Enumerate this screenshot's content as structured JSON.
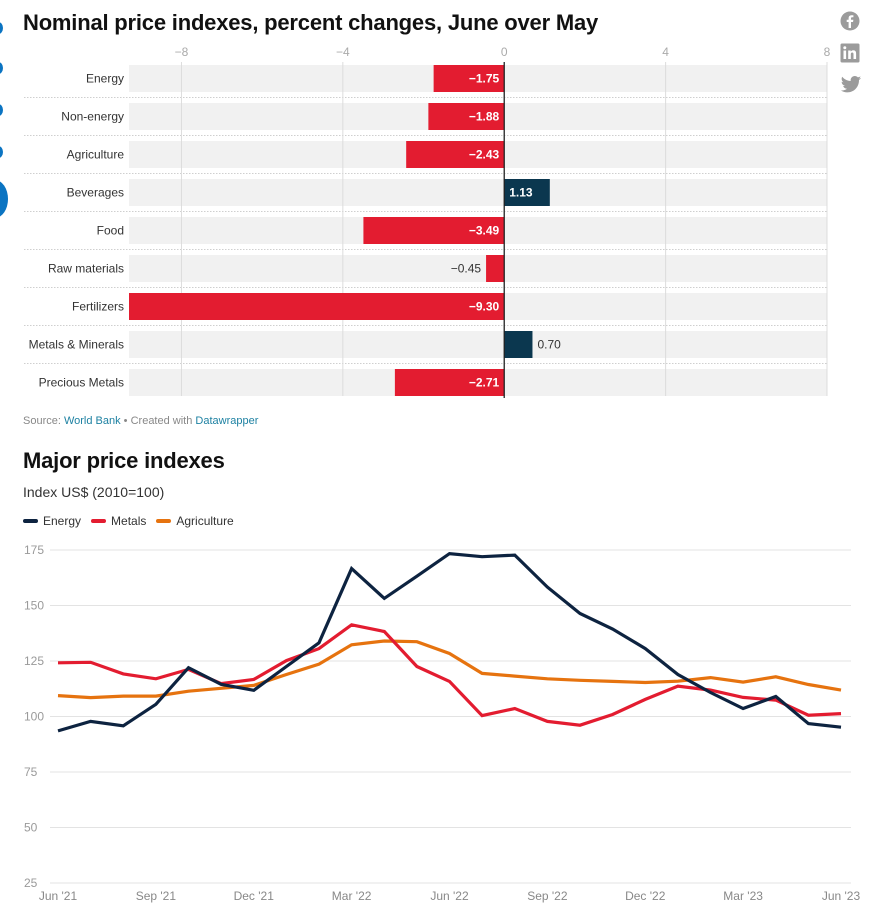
{
  "colors": {
    "negative": "#e31c30",
    "positive": "#0b374f",
    "energy": "#0d2340",
    "metals": "#e31c30",
    "agriculture": "#e6730f",
    "link": "#1d81a2",
    "edge_accent": "#0b74c2"
  },
  "social": [
    "facebook-icon",
    "linkedin-icon",
    "twitter-icon"
  ],
  "footer": {
    "source_prefix": "Source: ",
    "source_link": "World Bank",
    "separator": " • Created with ",
    "tool_link": "Datawrapper"
  },
  "chart_data": [
    {
      "type": "bar",
      "orientation": "horizontal",
      "title": "Nominal price indexes, percent changes, June over May",
      "categories": [
        "Energy",
        "Non-energy",
        "Agriculture",
        "Beverages",
        "Food",
        "Raw materials",
        "Fertilizers",
        "Metals & Minerals",
        "Precious Metals"
      ],
      "values": [
        -1.75,
        -1.88,
        -2.43,
        1.13,
        -3.49,
        -0.45,
        -9.3,
        0.7,
        -2.71
      ],
      "value_labels": [
        "−1.75",
        "−1.88",
        "−2.43",
        "1.13",
        "−3.49",
        "−0.45",
        "−9.30",
        "0.70",
        "−2.71"
      ],
      "xlim": [
        -9.3,
        8
      ],
      "xticks": [
        -8,
        -4,
        0,
        4,
        8
      ],
      "xtick_labels": [
        "−8",
        "−4",
        "0",
        "4",
        "8"
      ],
      "xlabel": "",
      "ylabel": "",
      "grid": true,
      "tick_position": "top"
    },
    {
      "type": "line",
      "title": "Major price indexes",
      "subtitle": "Index US$ (2010=100)",
      "x": [
        "Jun '21",
        "Jul '21",
        "Aug '21",
        "Sep '21",
        "Oct '21",
        "Nov '21",
        "Dec '21",
        "Jan '22",
        "Feb '22",
        "Mar '22",
        "Apr '22",
        "May '22",
        "Jun '22",
        "Jul '22",
        "Aug '22",
        "Sep '22",
        "Oct '22",
        "Nov '22",
        "Dec '22",
        "Jan '23",
        "Feb '23",
        "Mar '23",
        "Apr '23",
        "May '23",
        "Jun '23"
      ],
      "xtick_labels": [
        "Jun '21",
        "Sep '21",
        "Dec '21",
        "Mar '22",
        "Jun '22",
        "Sep '22",
        "Dec '22",
        "Mar '23",
        "Jun '23"
      ],
      "xtick_every": 3,
      "series": [
        {
          "name": "Energy",
          "color_key": "energy",
          "values": [
            93.5,
            97.8,
            95.8,
            105.5,
            122.0,
            114.5,
            111.8,
            122.5,
            133.2,
            166.6,
            153.2,
            163.2,
            173.4,
            172.0,
            172.7,
            158.3,
            146.4,
            139.4,
            130.6,
            118.9,
            110.8,
            103.6,
            109.0,
            96.8,
            95.2
          ]
        },
        {
          "name": "Metals",
          "color_key": "metals",
          "values": [
            124.2,
            124.4,
            119.2,
            117.0,
            121.2,
            114.8,
            116.7,
            125.2,
            130.6,
            141.3,
            138.3,
            122.5,
            115.8,
            100.4,
            103.6,
            97.8,
            96.1,
            100.9,
            107.7,
            113.7,
            111.9,
            108.6,
            107.4,
            100.6,
            101.3
          ]
        },
        {
          "name": "Agriculture",
          "color_key": "agriculture",
          "values": [
            109.4,
            108.5,
            109.2,
            109.2,
            111.4,
            112.7,
            114.0,
            118.9,
            123.6,
            132.3,
            134.0,
            133.7,
            128.4,
            119.4,
            118.2,
            117.0,
            116.3,
            115.8,
            115.3,
            115.9,
            117.5,
            115.5,
            117.9,
            114.4,
            111.9
          ]
        }
      ],
      "ylim": [
        25,
        175
      ],
      "yticks": [
        25,
        50,
        75,
        100,
        125,
        150,
        175
      ],
      "xlabel": "",
      "ylabel": "",
      "grid": true,
      "legend": "top-left"
    }
  ]
}
